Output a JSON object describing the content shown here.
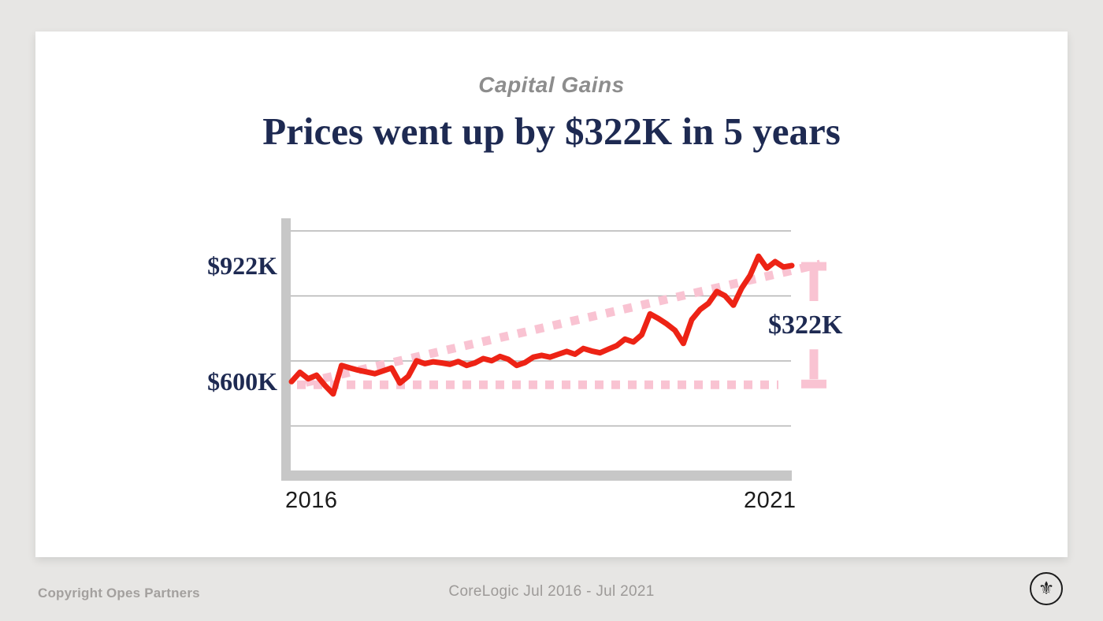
{
  "header": {
    "eyebrow": "Capital Gains",
    "title": "Prices went up by $322K in 5 years"
  },
  "chart_data": {
    "type": "line",
    "title": "Capital Gains",
    "subtitle": "Prices went up by $322K in 5 years",
    "x_range": [
      "Jul 2016",
      "Jul 2021"
    ],
    "x_tick_labels": [
      "2016",
      "2021"
    ],
    "start_label": "$600K",
    "end_label": "$922K",
    "gain_label": "$322K",
    "y_unit": "$K",
    "grid": "horizontal-only",
    "legend": "none",
    "series": [
      {
        "name": "house-price",
        "values": [
          600,
          626,
          608,
          618,
          590,
          566,
          645,
          638,
          632,
          627,
          622,
          630,
          638,
          596,
          615,
          658,
          650,
          655,
          652,
          648,
          656,
          645,
          652,
          664,
          658,
          670,
          662,
          645,
          653,
          668,
          673,
          668,
          676,
          684,
          676,
          692,
          685,
          680,
          690,
          700,
          718,
          710,
          730,
          788,
          775,
          760,
          742,
          706,
          772,
          800,
          817,
          850,
          838,
          812,
          860,
          895,
          948,
          915,
          933,
          918,
          922
        ]
      }
    ],
    "annotations": {
      "baseline_value": 600,
      "trend_line": {
        "from_value": 600,
        "to_value": 922
      },
      "gain_bracket": {
        "top_value": 922,
        "bottom_value": 600,
        "label": "$322K"
      }
    },
    "value_anchors": {
      "start_value": 600,
      "end_value": 922
    }
  },
  "theme": {
    "navy": "#1e2a52",
    "red": "#ed2315",
    "pink": "#f9c3d2",
    "axis_gray": "#c7c7c7",
    "grid_gray": "#b3b3b3",
    "page_bg": "#e7e6e4",
    "card_bg": "#ffffff"
  },
  "footer": {
    "copyright": "Copyright Opes Partners",
    "source": "CoreLogic Jul 2016 - Jul 2021",
    "logo_icon": "fleur-de-lis"
  }
}
